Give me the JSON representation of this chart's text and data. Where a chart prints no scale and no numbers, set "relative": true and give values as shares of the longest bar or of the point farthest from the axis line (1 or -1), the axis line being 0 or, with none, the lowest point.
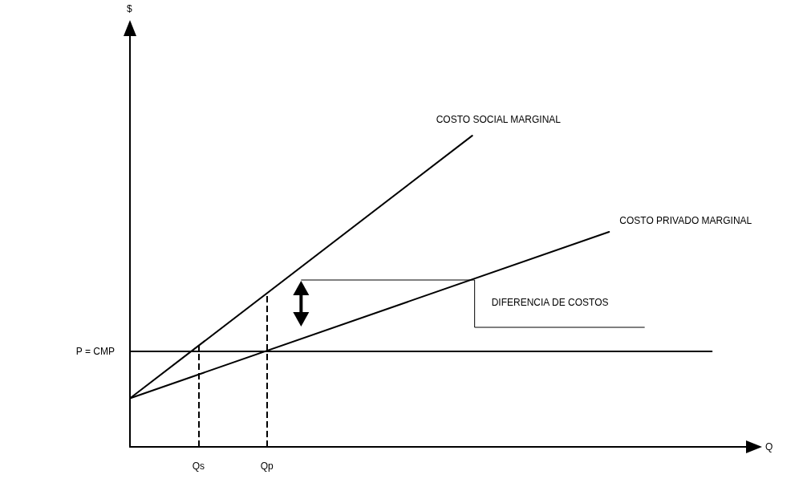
{
  "chart_data": {
    "type": "line",
    "relative": true,
    "xlabel": "Q",
    "categories": [
      null,
      null,
      "Qs",
      null,
      "Qp",
      null,
      null,
      null,
      null,
      null,
      null,
      null,
      null,
      null,
      null,
      null,
      null,
      null,
      null
    ],
    "series": [
      {
        "name": "COSTO SOCIAL MARGINAL",
        "color": "#000000",
        "values": [
          0.156,
          null,
          null,
          null,
          null,
          null,
          null,
          null,
          null,
          null,
          1,
          null,
          null,
          null,
          null,
          null,
          null,
          null,
          null
        ]
      },
      {
        "name": "COSTO PRIVADO MARGINAL",
        "color": "#000000",
        "values": [
          0.156,
          null,
          null,
          null,
          null,
          null,
          null,
          null,
          null,
          null,
          null,
          null,
          null,
          null,
          0.691,
          null,
          null,
          null,
          null
        ]
      },
      {
        "name": "P = CMP",
        "color": "#000000",
        "values": [
          0.307,
          null,
          null,
          null,
          null,
          null,
          null,
          null,
          null,
          null,
          null,
          null,
          null,
          null,
          null,
          null,
          null,
          0.307,
          null
        ]
      }
    ],
    "ref_lines": [
      {
        "axis": "x",
        "value": "Qs",
        "line_style": "dashed"
      },
      {
        "axis": "x",
        "value": "Qp",
        "line_style": "dashed"
      }
    ],
    "annotations": [
      "$",
      "DIFERENCIA DE COSTOS"
    ],
    "grid": false,
    "legend": false,
    "marker": "none",
    "line_style": "solid"
  }
}
